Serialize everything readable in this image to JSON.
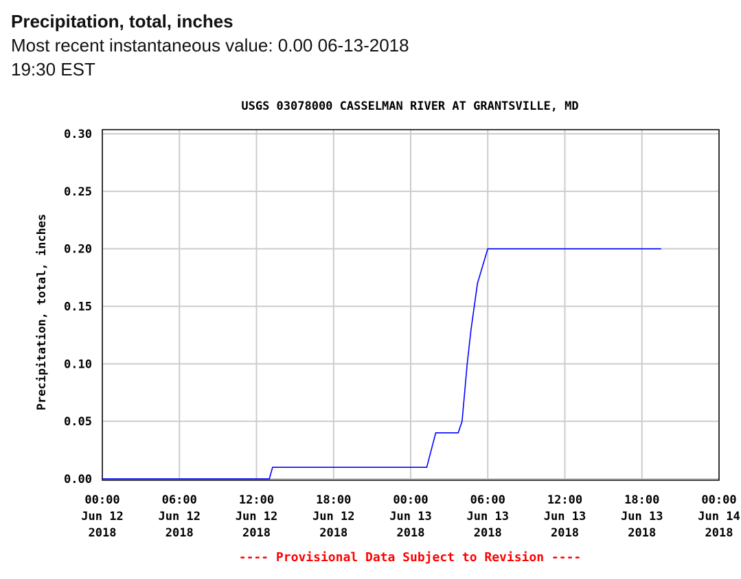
{
  "header": {
    "title": "Precipitation, total, inches",
    "subtitle": "Most recent instantaneous value: 0.00 06-13-2018   19:30 EST"
  },
  "chart_data": {
    "type": "line",
    "title": "USGS 03078000 CASSELMAN RIVER AT GRANTSVILLE, MD",
    "ylabel": "Precipitation, total, inches",
    "xlabel": "",
    "ylim": [
      0,
      0.3
    ],
    "xlim_hours": [
      0,
      48
    ],
    "yticks": [
      "0.00",
      "0.05",
      "0.10",
      "0.15",
      "0.20",
      "0.25",
      "0.30"
    ],
    "xticks": [
      [
        "00:00",
        "Jun 12",
        "2018"
      ],
      [
        "06:00",
        "Jun 12",
        "2018"
      ],
      [
        "12:00",
        "Jun 12",
        "2018"
      ],
      [
        "18:00",
        "Jun 12",
        "2018"
      ],
      [
        "00:00",
        "Jun 13",
        "2018"
      ],
      [
        "06:00",
        "Jun 13",
        "2018"
      ],
      [
        "12:00",
        "Jun 13",
        "2018"
      ],
      [
        "18:00",
        "Jun 13",
        "2018"
      ],
      [
        "00:00",
        "Jun 14",
        "2018"
      ]
    ],
    "grid": true,
    "series": [
      {
        "name": "Precipitation",
        "color": "#0000ff",
        "x_hours_from_jun12": [
          0,
          13.0,
          13.25,
          25.25,
          25.95,
          27.7,
          28.0,
          28.4,
          28.7,
          29.2,
          30.0,
          43.5
        ],
        "values": [
          0.0,
          0.0,
          0.01,
          0.01,
          0.04,
          0.04,
          0.05,
          0.1,
          0.13,
          0.17,
          0.2,
          0.2
        ]
      }
    ],
    "footnote": "---- Provisional Data Subject to Revision ----",
    "footnote_color": "#ff0000"
  }
}
